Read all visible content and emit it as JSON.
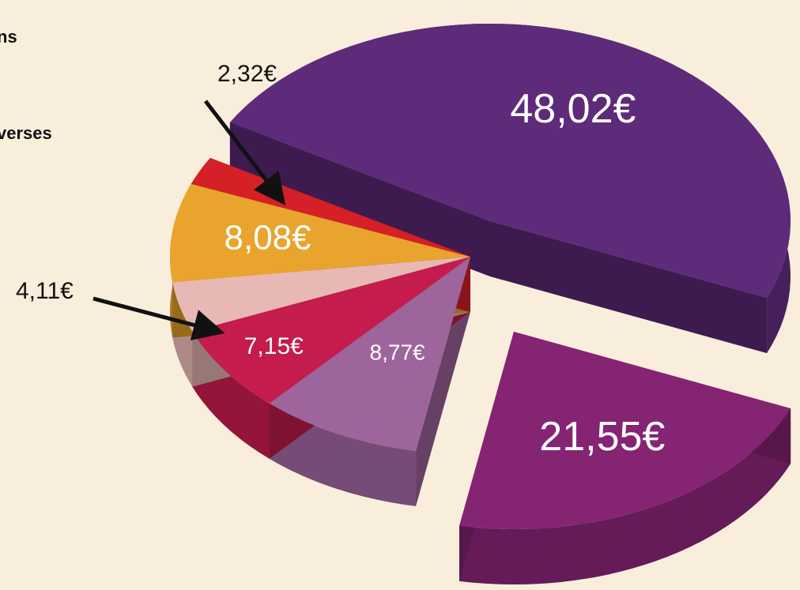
{
  "legend_fragments": [
    "ns",
    "verses"
  ],
  "chart_data": {
    "type": "pie",
    "values": [
      48.02,
      21.55,
      8.77,
      7.15,
      4.11,
      8.08,
      2.32
    ],
    "value_labels": [
      "48,02€",
      "21,55€",
      "8,77€",
      "7,15€",
      "4,11€",
      "8,08€",
      "2,32€"
    ],
    "colors": [
      "#5e2a7a",
      "#862474",
      "#9e649c",
      "#c41c4c",
      "#e8b8b4",
      "#e8a42c",
      "#d42026"
    ]
  }
}
